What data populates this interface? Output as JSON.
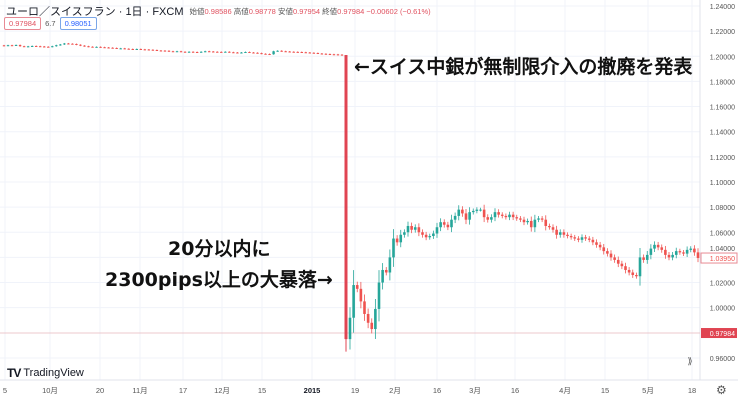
{
  "header": {
    "title": "ユーロ／スイスフラン · 1日 · FXCM",
    "open_label": "始値",
    "open": "0.98586",
    "high_label": "高値",
    "high": "0.98778",
    "low_label": "安値",
    "low": "0.97954",
    "close_label": "終値",
    "close": "0.97984",
    "change": "−0.00602 (−0.61%)",
    "bid": "0.97984",
    "spread": "6.7",
    "ask": "0.98051"
  },
  "annotations": {
    "top": "←スイス中銀が無制限介入の撤廃を発表",
    "bottom_line1": "20分以内に",
    "bottom_line2": "2300pips以上の大暴落→"
  },
  "logo": "TradingView",
  "colors": {
    "up": "#26a69a",
    "down": "#ef5350",
    "crash": "#e04452",
    "grid": "#f0f3fa",
    "price_label": "#e04452"
  },
  "chart_data": {
    "type": "candlestick",
    "ylim": [
      0.96,
      1.24
    ],
    "y_ticks": [
      "1.24000",
      "1.22000",
      "1.20000",
      "1.18000",
      "1.16000",
      "1.14000",
      "1.12000",
      "1.10000",
      "1.08000",
      "1.06000",
      "1.04000",
      "1.02000",
      "1.00000",
      "0.96000"
    ],
    "x_ticks": [
      "5",
      "10月",
      "20",
      "11月",
      "17",
      "12月",
      "15",
      "2015",
      "19",
      "2月",
      "16",
      "3月",
      "16",
      "4月",
      "15",
      "5月",
      "18"
    ],
    "last_price_label": "0.97984",
    "last_close_label": "1.03950",
    "pre_crash_closes": [
      1.2085,
      1.2088,
      1.2086,
      1.209,
      1.208,
      1.2078,
      1.2079,
      1.2082,
      1.208,
      1.2078,
      1.2076,
      1.2075,
      1.208,
      1.2088,
      1.2094,
      1.2102,
      1.21,
      1.2098,
      1.2092,
      1.2085,
      1.208,
      1.2076,
      1.2074,
      1.2075,
      1.2072,
      1.207,
      1.2068,
      1.2066,
      1.2062,
      1.2063,
      1.206,
      1.2058,
      1.2056,
      1.2058,
      1.2055,
      1.2054,
      1.2052,
      1.205,
      1.2046,
      1.2045,
      1.2044,
      1.204,
      1.2038,
      1.204,
      1.2036,
      1.2035,
      1.2036,
      1.2034,
      1.2033,
      1.2036,
      1.204,
      1.2038,
      1.2036,
      1.2035,
      1.2034,
      1.2036,
      1.2032,
      1.203,
      1.2028,
      1.203,
      1.2034,
      1.203,
      1.2028,
      1.2025,
      1.202,
      1.2018,
      1.2016,
      1.204,
      1.2044,
      1.204,
      1.2038,
      1.2036,
      1.2035,
      1.2034,
      1.2032,
      1.203,
      1.2028,
      1.2026,
      1.2022,
      1.202,
      1.2018,
      1.2016,
      1.2015,
      1.2013,
      1.2011
    ],
    "crash_candle": {
      "open": 1.201,
      "high": 1.201,
      "low": 0.965,
      "close": 0.975
    },
    "post_crash_closes": [
      0.992,
      1.018,
      1.015,
      1.005,
      0.995,
      0.988,
      0.983,
      0.999,
      1.02,
      1.03,
      1.028,
      1.04,
      1.055,
      1.052,
      1.058,
      1.06,
      1.065,
      1.062,
      1.064,
      1.06,
      1.058,
      1.056,
      1.057,
      1.059,
      1.064,
      1.068,
      1.066,
      1.064,
      1.07,
      1.073,
      1.078,
      1.075,
      1.07,
      1.076,
      1.077,
      1.078,
      1.078,
      1.072,
      1.07,
      1.072,
      1.076,
      1.074,
      1.073,
      1.072,
      1.074,
      1.072,
      1.071,
      1.07,
      1.068,
      1.069,
      1.064,
      1.07,
      1.071,
      1.07,
      1.065,
      1.064,
      1.062,
      1.058,
      1.06,
      1.058,
      1.057,
      1.056,
      1.055,
      1.054,
      1.056,
      1.055,
      1.054,
      1.052,
      1.05,
      1.048,
      1.045,
      1.043,
      1.04,
      1.038,
      1.035,
      1.033,
      1.03,
      1.028,
      1.026,
      1.025,
      1.04,
      1.038,
      1.042,
      1.047,
      1.05,
      1.048,
      1.046,
      1.042,
      1.04,
      1.042,
      1.045,
      1.044,
      1.043,
      1.046,
      1.047,
      1.044,
      1.0395
    ]
  }
}
